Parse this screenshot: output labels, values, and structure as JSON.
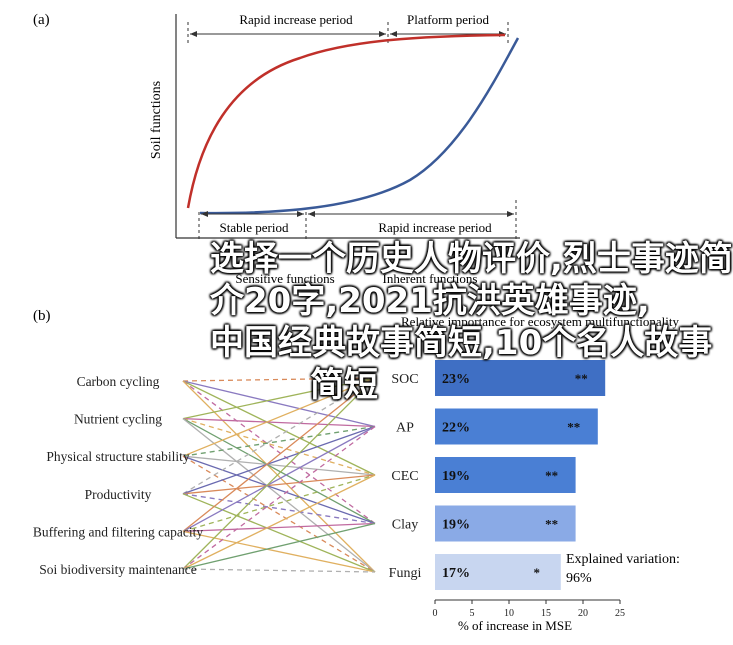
{
  "panel_a_label": "(a)",
  "panel_b_label": "(b)",
  "overlay_lines": [
    "选择一个历史人物评价,烈士事迹简",
    "介20字,2021抗洪英雄事迹,",
    "中国经典故事简短,10个名人故事",
    "简短"
  ],
  "colors": {
    "red": "#c0302a",
    "blue": "#3a5a98",
    "bar": "#4a7fd4",
    "bar_dark": "#3f6fc4",
    "bar_light": "#8aaae6"
  },
  "chart_data": [
    {
      "type": "line",
      "ylabel": "Soil functions",
      "periods_top": [
        "Rapid increase period",
        "Platform period"
      ],
      "periods_bottom": [
        "Stable period",
        "Rapid increase period"
      ],
      "series": [
        {
          "name": "red-curve",
          "color": "#c0302a"
        },
        {
          "name": "blue-curve",
          "color": "#3a5a98"
        }
      ],
      "xlabel_fragments": [
        "Sensitive functions",
        "Inherent functions"
      ]
    },
    {
      "type": "network",
      "left_nodes": [
        "Carbon cycling",
        "Nutrient cycling",
        "Physical structure stability",
        "Productivity",
        "Buffering and filtering capacity",
        "Soi biodiversity maintenance"
      ],
      "right_nodes": [
        "SOC",
        "AP",
        "CEC",
        "Clay",
        "Fungi"
      ]
    },
    {
      "type": "bar",
      "title": "Relative importance for ecosystem multifunctionality",
      "categories": [
        "SOC",
        "AP",
        "CEC",
        "Clay",
        "Fungi"
      ],
      "values": [
        23,
        22,
        19,
        19,
        17
      ],
      "labels": [
        "23%",
        "22%",
        "19%",
        "19%",
        "17%"
      ],
      "significance": [
        "**",
        "**",
        "**",
        "**",
        "*"
      ],
      "xlim": [
        0,
        25
      ],
      "xticks": [
        0,
        5,
        10,
        15,
        20,
        25
      ],
      "xlabel": "% of increase in MSE",
      "explained_label": "Explained variation:",
      "explained_value": "96%"
    }
  ]
}
